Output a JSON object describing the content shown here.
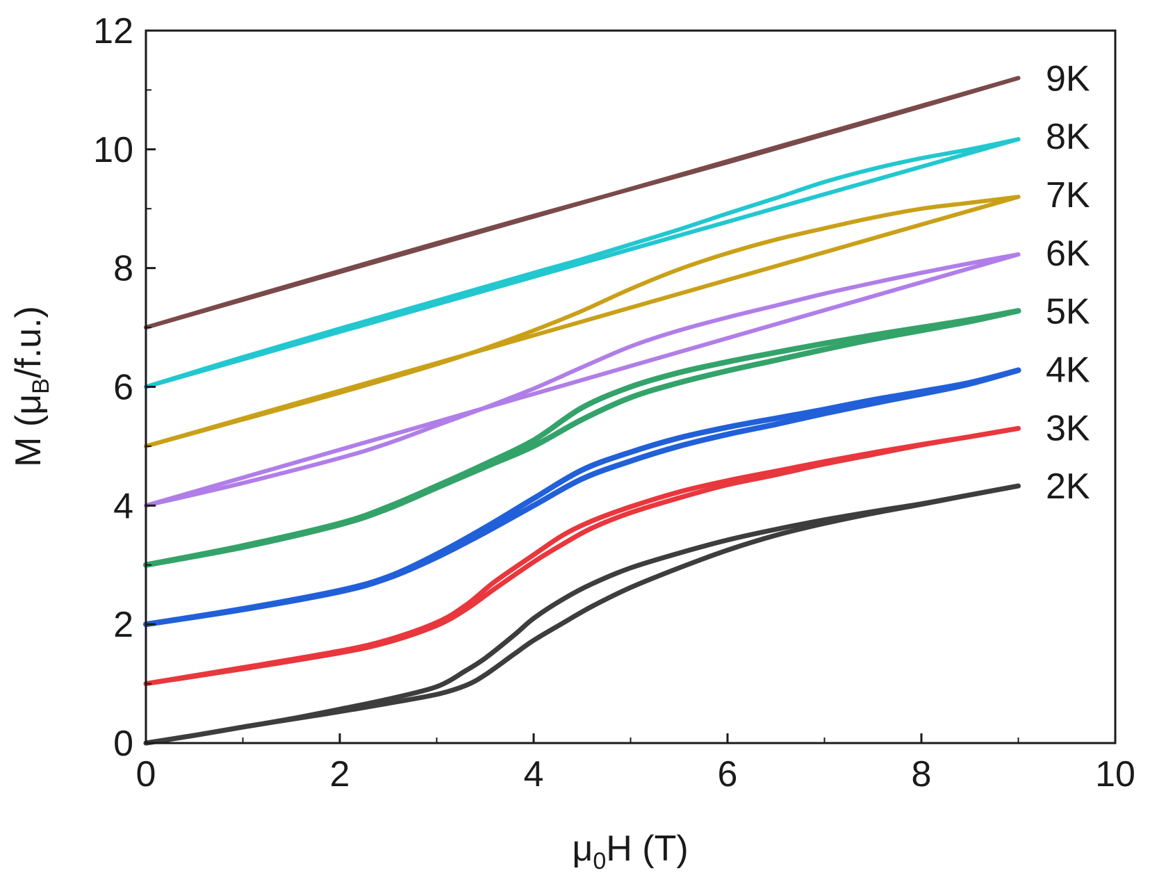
{
  "chart_data": {
    "type": "line",
    "title": "",
    "xlabel": {
      "pre": "μ",
      "sub": "0",
      "post": "H (T)"
    },
    "ylabel": {
      "pre": "M (μ",
      "sub": "B",
      "post": "/f.u.)"
    },
    "xlim": [
      0,
      10
    ],
    "ylim": [
      0,
      12
    ],
    "xticks": [
      0,
      2,
      4,
      6,
      8,
      10
    ],
    "yticks": [
      0,
      2,
      4,
      6,
      8,
      10,
      12
    ],
    "xtick_labels": [
      "0",
      "2",
      "4",
      "6",
      "8",
      "10"
    ],
    "ytick_labels": [
      "0",
      "2",
      "4",
      "6",
      "8",
      "10",
      "12"
    ],
    "grid": false,
    "legend": "inline-right",
    "series": [
      {
        "name": "2K",
        "color": "#3d3d3d",
        "width": 7,
        "up": {
          "x": [
            0,
            0.5,
            1,
            1.5,
            2,
            2.5,
            3,
            3.3,
            3.5,
            3.8,
            4,
            4.3,
            4.6,
            5,
            5.5,
            6,
            6.5,
            7,
            7.5,
            8,
            8.5,
            9
          ],
          "y": [
            0,
            0.13,
            0.27,
            0.4,
            0.53,
            0.67,
            0.82,
            0.97,
            1.15,
            1.5,
            1.73,
            2.02,
            2.3,
            2.62,
            2.95,
            3.25,
            3.5,
            3.7,
            3.87,
            4.02,
            4.18,
            4.33
          ]
        },
        "down": {
          "x": [
            9,
            8.5,
            8,
            7.5,
            7,
            6.5,
            6,
            5.5,
            5,
            4.6,
            4.3,
            4,
            3.8,
            3.5,
            3.3,
            3,
            2.5,
            2,
            1.5,
            1,
            0.5,
            0
          ],
          "y": [
            4.33,
            4.18,
            4.03,
            3.9,
            3.76,
            3.6,
            3.42,
            3.2,
            2.95,
            2.68,
            2.42,
            2.1,
            1.82,
            1.43,
            1.22,
            0.95,
            0.74,
            0.57,
            0.41,
            0.27,
            0.13,
            0
          ]
        }
      },
      {
        "name": "3K",
        "color": "#e8373d",
        "width": 7,
        "up": {
          "x": [
            0,
            1,
            2,
            2.5,
            3,
            3.3,
            3.6,
            4,
            4.3,
            4.6,
            5,
            5.5,
            6,
            6.5,
            7,
            7.5,
            8,
            8.5,
            9
          ],
          "y": [
            1,
            1.25,
            1.52,
            1.7,
            1.98,
            2.25,
            2.6,
            3.05,
            3.35,
            3.62,
            3.88,
            4.13,
            4.35,
            4.52,
            4.7,
            4.86,
            5.02,
            5.16,
            5.3
          ]
        },
        "down": {
          "x": [
            9,
            8.5,
            8,
            7.5,
            7,
            6.5,
            6,
            5.5,
            5,
            4.6,
            4.3,
            4,
            3.6,
            3.3,
            3,
            2.5,
            2,
            1,
            0
          ],
          "y": [
            5.3,
            5.16,
            5.03,
            4.89,
            4.74,
            4.58,
            4.42,
            4.23,
            3.98,
            3.74,
            3.5,
            3.17,
            2.72,
            2.32,
            2.03,
            1.74,
            1.55,
            1.27,
            1
          ]
        }
      },
      {
        "name": "4K",
        "color": "#2160d8",
        "width": 8,
        "up": {
          "x": [
            0,
            1,
            2,
            2.5,
            3,
            3.5,
            4,
            4.5,
            5,
            5.5,
            6,
            6.5,
            7,
            7.5,
            8,
            8.5,
            9
          ],
          "y": [
            2,
            2.25,
            2.55,
            2.78,
            3.13,
            3.55,
            4.0,
            4.45,
            4.75,
            5.0,
            5.2,
            5.37,
            5.55,
            5.72,
            5.88,
            6.05,
            6.28
          ]
        },
        "down": {
          "x": [
            9,
            8.5,
            8,
            7.5,
            7,
            6.5,
            6,
            5.5,
            5,
            4.5,
            4,
            3.5,
            3,
            2.5,
            2,
            1,
            0
          ],
          "y": [
            6.28,
            6.07,
            5.92,
            5.78,
            5.62,
            5.47,
            5.32,
            5.14,
            4.9,
            4.6,
            4.12,
            3.63,
            3.18,
            2.8,
            2.57,
            2.26,
            2
          ]
        }
      },
      {
        "name": "5K",
        "color": "#34a36a",
        "width": 8,
        "up": {
          "x": [
            0,
            1,
            2,
            2.5,
            3,
            3.5,
            4,
            4.5,
            5,
            5.5,
            6,
            6.5,
            7,
            7.5,
            8,
            8.5,
            9
          ],
          "y": [
            3,
            3.3,
            3.68,
            3.95,
            4.3,
            4.65,
            5.0,
            5.45,
            5.82,
            6.07,
            6.27,
            6.45,
            6.63,
            6.8,
            6.95,
            7.1,
            7.28
          ]
        },
        "down": {
          "x": [
            9,
            8.5,
            8,
            7.5,
            7,
            6.5,
            6,
            5.5,
            5,
            4.5,
            4,
            3.5,
            3,
            2.5,
            2,
            1,
            0
          ],
          "y": [
            7.28,
            7.13,
            7.0,
            6.87,
            6.73,
            6.58,
            6.42,
            6.24,
            6.0,
            5.65,
            5.1,
            4.7,
            4.33,
            3.98,
            3.7,
            3.32,
            3
          ]
        }
      },
      {
        "name": "6K",
        "color": "#b07ee8",
        "width": 6,
        "up": {
          "x": [
            0,
            1,
            2,
            2.5,
            3,
            3.5,
            4,
            4.5,
            5,
            5.5,
            6,
            6.5,
            7,
            7.5,
            8,
            8.5,
            9
          ],
          "y": [
            4,
            4.38,
            4.8,
            5.05,
            5.35,
            5.65,
            5.97,
            6.33,
            6.68,
            6.95,
            7.17,
            7.37,
            7.57,
            7.75,
            7.92,
            8.08,
            8.23
          ]
        },
        "down": {
          "x": [
            9,
            0
          ],
          "y": [
            8.23,
            4
          ]
        }
      },
      {
        "name": "7K",
        "color": "#c9a018",
        "width": 6,
        "up": {
          "x": [
            0,
            1,
            2,
            3,
            3.5,
            4,
            4.5,
            5,
            5.5,
            6,
            6.5,
            7,
            7.5,
            8,
            8.5,
            9
          ],
          "y": [
            5,
            5.45,
            5.9,
            6.38,
            6.65,
            6.95,
            7.28,
            7.65,
            7.98,
            8.25,
            8.48,
            8.67,
            8.85,
            9.0,
            9.1,
            9.2
          ]
        },
        "down": {
          "x": [
            9,
            0
          ],
          "y": [
            9.2,
            5
          ]
        }
      },
      {
        "name": "8K",
        "color": "#22c7cf",
        "width": 6,
        "up": {
          "x": [
            0,
            1,
            2,
            3,
            4,
            4.5,
            5,
            5.5,
            6,
            6.5,
            7,
            7.5,
            8,
            8.5,
            9
          ],
          "y": [
            6,
            6.5,
            6.98,
            7.45,
            7.92,
            8.15,
            8.4,
            8.65,
            8.92,
            9.18,
            9.45,
            9.67,
            9.85,
            10.0,
            10.17
          ]
        },
        "down": {
          "x": [
            9,
            0
          ],
          "y": [
            10.17,
            6
          ]
        }
      },
      {
        "name": "9K",
        "color": "#7a4a4a",
        "width": 6,
        "up": {
          "x": [
            0,
            1,
            2,
            3,
            4,
            5,
            6,
            7,
            8,
            9
          ],
          "y": [
            7,
            7.48,
            7.95,
            8.42,
            8.88,
            9.33,
            9.78,
            10.25,
            10.72,
            11.2
          ]
        },
        "down": {
          "x": [
            9,
            0
          ],
          "y": [
            11.2,
            7
          ]
        }
      }
    ]
  }
}
